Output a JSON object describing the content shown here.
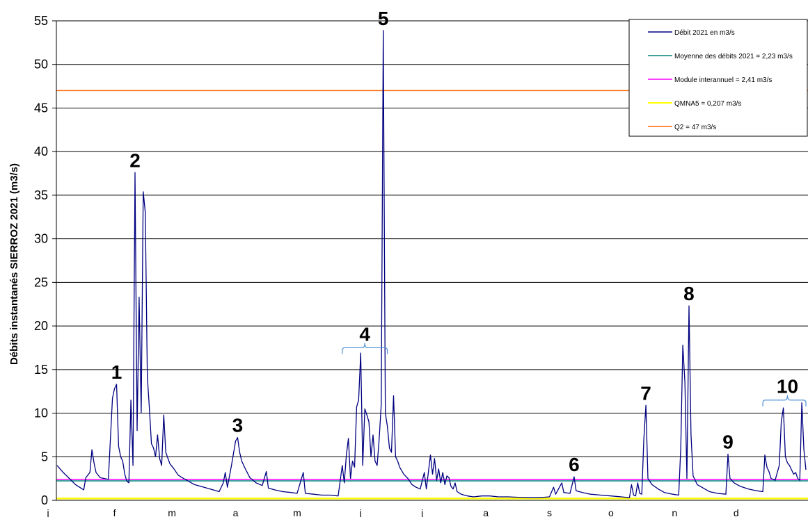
{
  "chart_data": {
    "type": "line",
    "title": "",
    "xlabel": "",
    "ylabel": "Débits instantanés SIERROZ 2021 (m3/s)",
    "ylim": [
      0,
      55
    ],
    "yticks": [
      0,
      5,
      10,
      15,
      20,
      25,
      30,
      35,
      40,
      45,
      50,
      55
    ],
    "grid": "horizontal",
    "legend_position": "top-right",
    "x_months": [
      "j",
      "f",
      "m",
      "a",
      "m",
      "j",
      "j",
      "a",
      "s",
      "o",
      "n",
      "d"
    ],
    "series": [
      {
        "name": "Débit 2021 en m3/s",
        "color": "#000080",
        "points": [
          [
            0,
            4.0
          ],
          [
            3,
            3.2
          ],
          [
            6,
            2.5
          ],
          [
            9,
            1.8
          ],
          [
            11,
            1.5
          ],
          [
            13,
            1.2
          ],
          [
            14,
            2.6
          ],
          [
            16,
            3.2
          ],
          [
            17,
            5.8
          ],
          [
            18,
            4.3
          ],
          [
            19,
            3.2
          ],
          [
            21,
            2.6
          ],
          [
            23,
            2.5
          ],
          [
            25,
            2.4
          ],
          [
            27,
            11.7
          ],
          [
            28,
            12.8
          ],
          [
            29,
            13.3
          ],
          [
            30,
            6.2
          ],
          [
            31,
            5.0
          ],
          [
            32,
            4.5
          ],
          [
            33,
            3.0
          ],
          [
            34,
            2.2
          ],
          [
            35,
            2.0
          ],
          [
            36,
            11.5
          ],
          [
            37,
            4.0
          ],
          [
            38,
            37.6
          ],
          [
            39,
            8.0
          ],
          [
            40,
            23.3
          ],
          [
            41,
            10.0
          ],
          [
            42,
            35.4
          ],
          [
            43,
            33.0
          ],
          [
            44,
            14.2
          ],
          [
            45,
            10.5
          ],
          [
            46,
            6.5
          ],
          [
            47,
            6.0
          ],
          [
            48,
            5.0
          ],
          [
            49,
            7.5
          ],
          [
            50,
            4.8
          ],
          [
            51,
            4.0
          ],
          [
            52,
            9.8
          ],
          [
            53,
            5.5
          ],
          [
            55,
            4.2
          ],
          [
            57,
            3.6
          ],
          [
            59,
            2.9
          ],
          [
            61,
            2.6
          ],
          [
            64,
            2.2
          ],
          [
            67,
            1.8
          ],
          [
            70,
            1.6
          ],
          [
            73,
            1.4
          ],
          [
            76,
            1.2
          ],
          [
            79,
            1.0
          ],
          [
            81,
            2.0
          ],
          [
            82,
            3.2
          ],
          [
            83,
            1.5
          ],
          [
            85,
            4.0
          ],
          [
            87,
            6.8
          ],
          [
            88,
            7.2
          ],
          [
            89,
            5.5
          ],
          [
            90,
            4.5
          ],
          [
            92,
            3.5
          ],
          [
            94,
            2.6
          ],
          [
            97,
            2.0
          ],
          [
            100,
            1.7
          ],
          [
            102,
            3.3
          ],
          [
            103,
            1.4
          ],
          [
            106,
            1.2
          ],
          [
            110,
            1.0
          ],
          [
            114,
            0.9
          ],
          [
            117,
            0.8
          ],
          [
            120,
            3.2
          ],
          [
            121,
            0.8
          ],
          [
            125,
            0.7
          ],
          [
            129,
            0.6
          ],
          [
            133,
            0.6
          ],
          [
            137,
            0.5
          ],
          [
            139,
            4.0
          ],
          [
            140,
            2.0
          ],
          [
            141,
            5.2
          ],
          [
            142,
            7.1
          ],
          [
            143,
            2.5
          ],
          [
            144,
            4.5
          ],
          [
            145,
            3.8
          ],
          [
            146,
            10.7
          ],
          [
            147,
            11.5
          ],
          [
            148,
            16.9
          ],
          [
            149,
            4.0
          ],
          [
            150,
            10.5
          ],
          [
            151,
            9.8
          ],
          [
            152,
            9.0
          ],
          [
            153,
            5.0
          ],
          [
            154,
            7.5
          ],
          [
            155,
            4.5
          ],
          [
            156,
            4.0
          ],
          [
            157,
            7.0
          ],
          [
            158,
            11.0
          ],
          [
            159,
            53.9
          ],
          [
            160,
            10.0
          ],
          [
            161,
            8.5
          ],
          [
            162,
            6.0
          ],
          [
            163,
            5.5
          ],
          [
            164,
            12.0
          ],
          [
            165,
            5.0
          ],
          [
            166,
            4.5
          ],
          [
            167,
            3.8
          ],
          [
            169,
            3.0
          ],
          [
            171,
            2.5
          ],
          [
            173,
            1.8
          ],
          [
            175,
            1.5
          ],
          [
            177,
            1.3
          ],
          [
            179,
            3.2
          ],
          [
            180,
            1.3
          ],
          [
            182,
            5.2
          ],
          [
            183,
            3.0
          ],
          [
            184,
            4.8
          ],
          [
            185,
            2.3
          ],
          [
            186,
            3.6
          ],
          [
            187,
            2.0
          ],
          [
            188,
            3.2
          ],
          [
            189,
            1.8
          ],
          [
            190,
            2.8
          ],
          [
            191,
            2.6
          ],
          [
            192,
            1.6
          ],
          [
            193,
            1.3
          ],
          [
            194,
            2.0
          ],
          [
            195,
            1.0
          ],
          [
            197,
            0.7
          ],
          [
            200,
            0.5
          ],
          [
            203,
            0.4
          ],
          [
            207,
            0.5
          ],
          [
            211,
            0.5
          ],
          [
            215,
            0.4
          ],
          [
            220,
            0.4
          ],
          [
            225,
            0.35
          ],
          [
            230,
            0.3
          ],
          [
            235,
            0.3
          ],
          [
            240,
            0.4
          ],
          [
            242,
            1.5
          ],
          [
            243,
            0.7
          ],
          [
            246,
            2.0
          ],
          [
            247,
            0.9
          ],
          [
            250,
            0.8
          ],
          [
            252,
            2.7
          ],
          [
            253,
            1.1
          ],
          [
            256,
            0.9
          ],
          [
            260,
            0.7
          ],
          [
            265,
            0.6
          ],
          [
            270,
            0.5
          ],
          [
            275,
            0.4
          ],
          [
            279,
            0.3
          ],
          [
            280,
            1.8
          ],
          [
            281,
            0.6
          ],
          [
            282,
            0.5
          ],
          [
            283,
            2.0
          ],
          [
            284,
            0.8
          ],
          [
            285,
            0.7
          ],
          [
            286,
            7.0
          ],
          [
            287,
            10.9
          ],
          [
            288,
            2.5
          ],
          [
            290,
            1.8
          ],
          [
            293,
            1.3
          ],
          [
            296,
            0.9
          ],
          [
            300,
            0.7
          ],
          [
            303,
            0.6
          ],
          [
            304,
            6.0
          ],
          [
            305,
            17.8
          ],
          [
            306,
            13.6
          ],
          [
            307,
            2.5
          ],
          [
            308,
            22.3
          ],
          [
            309,
            7.5
          ],
          [
            310,
            2.8
          ],
          [
            312,
            1.8
          ],
          [
            315,
            1.4
          ],
          [
            318,
            1.0
          ],
          [
            322,
            0.8
          ],
          [
            326,
            0.7
          ],
          [
            327,
            5.3
          ],
          [
            328,
            2.5
          ],
          [
            330,
            2.0
          ],
          [
            333,
            1.6
          ],
          [
            337,
            1.3
          ],
          [
            341,
            1.1
          ],
          [
            344,
            1.0
          ],
          [
            345,
            5.2
          ],
          [
            346,
            3.8
          ],
          [
            347,
            3.3
          ],
          [
            348,
            2.5
          ],
          [
            350,
            2.3
          ],
          [
            352,
            4.0
          ],
          [
            353,
            9.0
          ],
          [
            354,
            10.6
          ],
          [
            355,
            5.0
          ],
          [
            356,
            4.3
          ],
          [
            357,
            4.0
          ],
          [
            358,
            3.5
          ],
          [
            359,
            3.0
          ],
          [
            360,
            3.2
          ],
          [
            361,
            2.5
          ],
          [
            362,
            2.3
          ],
          [
            363,
            11.2
          ],
          [
            364,
            5.8
          ],
          [
            365,
            3.5
          ]
        ]
      },
      {
        "name": "Moyenne des débits 2021 = 2,23 m3/s",
        "color": "#008080",
        "constant": 2.23
      },
      {
        "name": "Module interannuel = 2,41 m3/s",
        "color": "#ff00ff",
        "constant": 2.41
      },
      {
        "name": "QMNA5 = 0,207 m3/s",
        "color": "#ffff00",
        "constant": 0.207
      },
      {
        "name": "Q2 = 47 m3/s",
        "color": "#ff6600",
        "constant": 47
      }
    ],
    "annotations": [
      {
        "label": "1",
        "x": 29,
        "y": 13.3,
        "brace": false
      },
      {
        "label": "2",
        "x": 38,
        "y": 37.6,
        "brace": false
      },
      {
        "label": "3",
        "x": 88,
        "y": 7.2,
        "brace": false
      },
      {
        "label": "4",
        "x": 150,
        "y": 17.5,
        "brace": true,
        "x_start": 139,
        "x_end": 161
      },
      {
        "label": "5",
        "x": 159,
        "y": 53.9,
        "brace": false
      },
      {
        "label": "6",
        "x": 252,
        "y": 2.7,
        "brace": false
      },
      {
        "label": "7",
        "x": 287,
        "y": 10.9,
        "brace": false
      },
      {
        "label": "8",
        "x": 308,
        "y": 22.3,
        "brace": false
      },
      {
        "label": "9",
        "x": 327,
        "y": 5.3,
        "brace": false
      },
      {
        "label": "10",
        "x": 356,
        "y": 11.5,
        "brace": true,
        "x_start": 344,
        "x_end": 365
      }
    ]
  }
}
